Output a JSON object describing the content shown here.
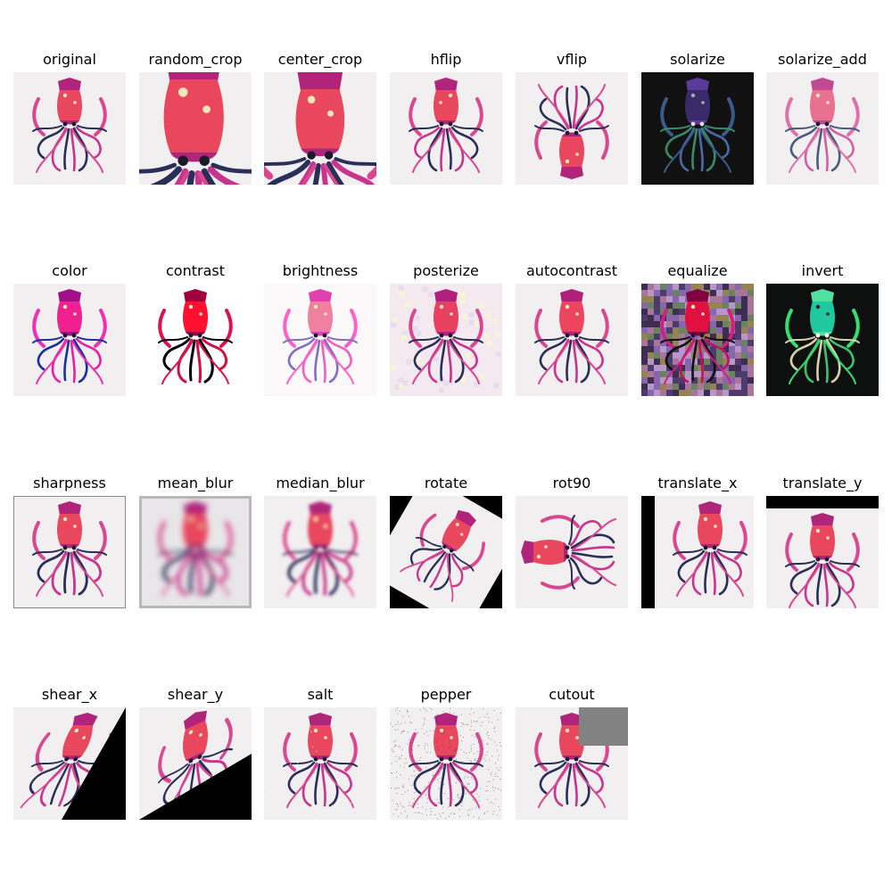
{
  "panels": [
    {
      "label": "original",
      "icon": "squid-original-image"
    },
    {
      "label": "random_crop",
      "icon": "squid-random-crop-image"
    },
    {
      "label": "center_crop",
      "icon": "squid-center-crop-image"
    },
    {
      "label": "hflip",
      "icon": "squid-hflip-image"
    },
    {
      "label": "vflip",
      "icon": "squid-vflip-image"
    },
    {
      "label": "solarize",
      "icon": "squid-solarize-image"
    },
    {
      "label": "solarize_add",
      "icon": "squid-solarize-add-image"
    },
    {
      "label": "color",
      "icon": "squid-color-image"
    },
    {
      "label": "contrast",
      "icon": "squid-contrast-image"
    },
    {
      "label": "brightness",
      "icon": "squid-brightness-image"
    },
    {
      "label": "posterize",
      "icon": "squid-posterize-image"
    },
    {
      "label": "autocontrast",
      "icon": "squid-autocontrast-image"
    },
    {
      "label": "equalize",
      "icon": "squid-equalize-image"
    },
    {
      "label": "invert",
      "icon": "squid-invert-image"
    },
    {
      "label": "sharpness",
      "icon": "squid-sharpness-image"
    },
    {
      "label": "mean_blur",
      "icon": "squid-mean-blur-image"
    },
    {
      "label": "median_blur",
      "icon": "squid-median-blur-image"
    },
    {
      "label": "rotate",
      "icon": "squid-rotate-image"
    },
    {
      "label": "rot90",
      "icon": "squid-rot90-image"
    },
    {
      "label": "translate_x",
      "icon": "squid-translate-x-image"
    },
    {
      "label": "translate_y",
      "icon": "squid-translate-y-image"
    },
    {
      "label": "shear_x",
      "icon": "squid-shear-x-image"
    },
    {
      "label": "shear_y",
      "icon": "squid-shear-y-image"
    },
    {
      "label": "salt",
      "icon": "squid-salt-image"
    },
    {
      "label": "pepper",
      "icon": "squid-pepper-image"
    },
    {
      "label": "cutout",
      "icon": "squid-cutout-image"
    }
  ]
}
